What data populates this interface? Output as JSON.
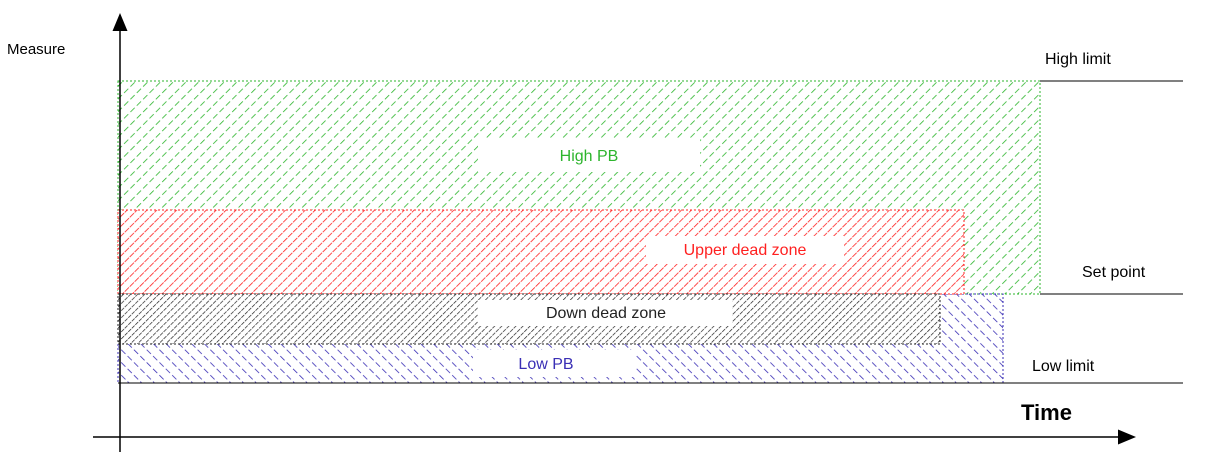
{
  "axes": {
    "y_label": "Measure",
    "x_label": "Time"
  },
  "levels": {
    "high_limit": "High limit",
    "set_point": "Set point",
    "low_limit": "Low limit"
  },
  "zones": {
    "high_pb": {
      "label": "High PB",
      "color": "#2db52d"
    },
    "upper_dead_zone": {
      "label": "Upper dead zone",
      "color": "#ff2020"
    },
    "down_dead_zone": {
      "label": "Down dead zone",
      "color": "#222222"
    },
    "low_pb": {
      "label": "Low PB",
      "color": "#3a2fb5"
    }
  }
}
